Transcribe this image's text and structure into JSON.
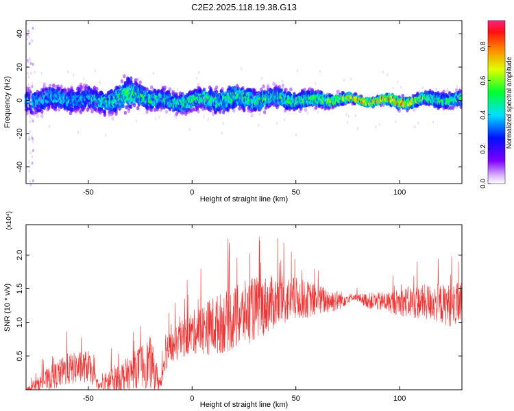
{
  "chart_data": [
    {
      "type": "heatmap",
      "title": "C2E2.2025.118.19.38.G13",
      "xlabel": "Height of straight line (km)",
      "ylabel": "Frequency (Hz)",
      "xlim": [
        -80,
        130
      ],
      "ylim": [
        -50,
        48
      ],
      "xticks": [
        -50,
        0,
        50,
        100
      ],
      "yticks": [
        -40,
        -20,
        0,
        20,
        40
      ],
      "colorbar": {
        "label": "Normalized spectral amplitude",
        "range": [
          0.0,
          0.95
        ],
        "ticks": [
          0.0,
          0.2,
          0.4,
          0.6,
          0.8
        ],
        "colormap": "rainbow (violet-blue-cyan-green-yellow-red-magenta)"
      },
      "ridge": {
        "x": [
          -80,
          -60,
          -40,
          -30,
          -25,
          -20,
          -10,
          0,
          20,
          40,
          60,
          70,
          80,
          90,
          100,
          110,
          120,
          130
        ],
        "center_hz": [
          0,
          1,
          0,
          3,
          4,
          1,
          -1,
          0,
          1,
          1,
          0,
          1,
          0,
          0,
          -1,
          0,
          1,
          0
        ],
        "spread_hz": [
          6,
          6,
          6,
          8,
          6,
          5,
          5,
          5,
          6,
          5,
          4,
          3,
          2,
          2,
          3,
          3,
          4,
          4
        ],
        "peak_amplitude": [
          0.4,
          0.4,
          0.45,
          0.55,
          0.5,
          0.5,
          0.45,
          0.5,
          0.5,
          0.5,
          0.55,
          0.6,
          0.8,
          0.85,
          0.85,
          0.6,
          0.5,
          0.5
        ]
      },
      "grid": false
    },
    {
      "type": "line",
      "xlabel": "Height of straight line (km)",
      "ylabel": "SNR (10 * v/v)",
      "y_multiplier": "(x10⁴)",
      "xlim": [
        -80,
        130
      ],
      "ylim": [
        0,
        2.45
      ],
      "xticks": [
        -50,
        0,
        50,
        100
      ],
      "yticks": [
        0.5,
        1.0,
        1.5,
        2.0
      ],
      "color": "#ee3333",
      "envelope": {
        "x": [
          -80,
          -70,
          -60,
          -50,
          -45,
          -40,
          -30,
          -25,
          -20,
          -15,
          -13,
          -10,
          -5,
          0,
          10,
          20,
          30,
          40,
          50,
          60,
          70,
          78,
          85,
          95,
          105,
          115,
          125,
          130
        ],
        "mean": [
          0.0,
          0.15,
          0.3,
          0.35,
          0.05,
          0.1,
          0.25,
          0.35,
          0.4,
          0.05,
          0.6,
          0.6,
          0.75,
          0.85,
          0.95,
          1.05,
          1.2,
          1.3,
          1.35,
          1.33,
          1.32,
          1.38,
          1.32,
          1.3,
          1.3,
          1.3,
          1.25,
          1.28
        ],
        "amplitude": [
          0.02,
          0.2,
          0.3,
          0.3,
          0.05,
          0.3,
          0.3,
          0.4,
          0.5,
          0.1,
          0.4,
          0.3,
          0.35,
          0.4,
          0.55,
          0.6,
          0.6,
          0.5,
          0.4,
          0.3,
          0.2,
          0.05,
          0.15,
          0.2,
          0.3,
          0.35,
          0.4,
          0.4
        ]
      },
      "grid": false
    }
  ]
}
